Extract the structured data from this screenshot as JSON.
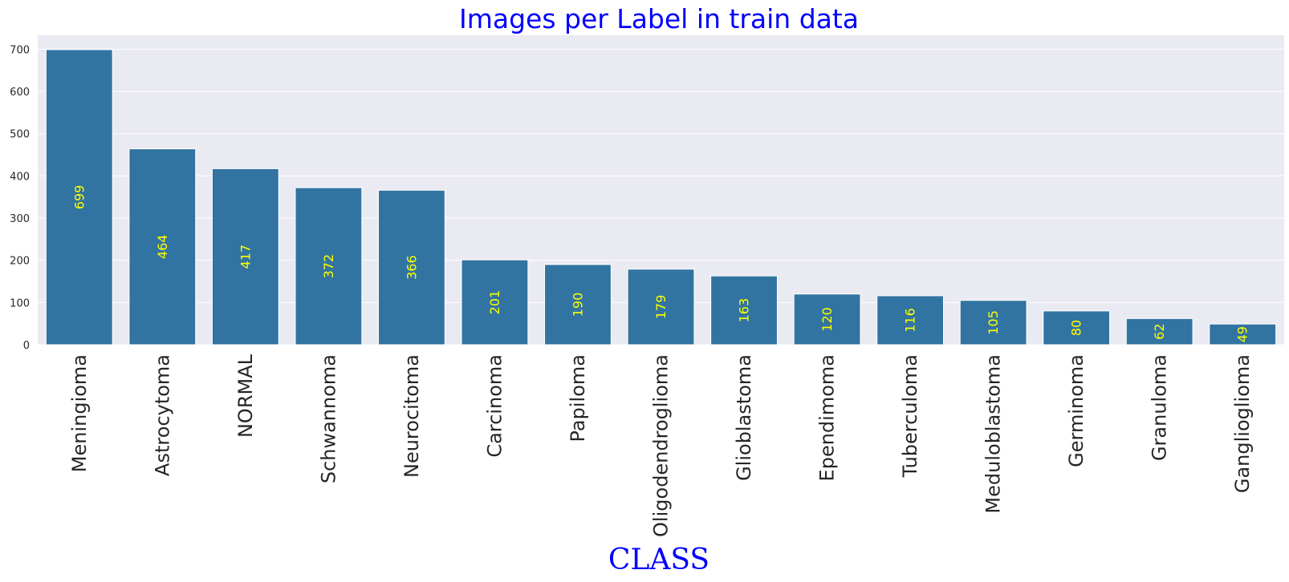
{
  "chart_data": {
    "type": "bar",
    "title": "Images per Label in train data",
    "xlabel": "CLASS",
    "ylabel": "",
    "categories": [
      "Meningioma",
      "Astrocytoma",
      "NORMAL",
      "Schwannoma",
      "Neurocitoma",
      "Carcinoma",
      "Papiloma",
      "Oligodendroglioma",
      "Glioblastoma",
      "Ependimoma",
      "Tuberculoma",
      "Meduloblastoma",
      "Germinoma",
      "Granuloma",
      "Ganglioglioma"
    ],
    "values": [
      699,
      464,
      417,
      372,
      366,
      201,
      190,
      179,
      163,
      120,
      116,
      105,
      80,
      62,
      49
    ],
    "ylim": [
      0,
      733
    ],
    "yticks": [
      0,
      100,
      200,
      300,
      400,
      500,
      600,
      700
    ],
    "grid": true,
    "colors": {
      "bar": "#3274a1",
      "plot_background": "#eaeaf2",
      "grid": "#ffffff",
      "title": "#0000ff",
      "xlabel": "#0000ff",
      "data_label": "#ffff00"
    }
  }
}
